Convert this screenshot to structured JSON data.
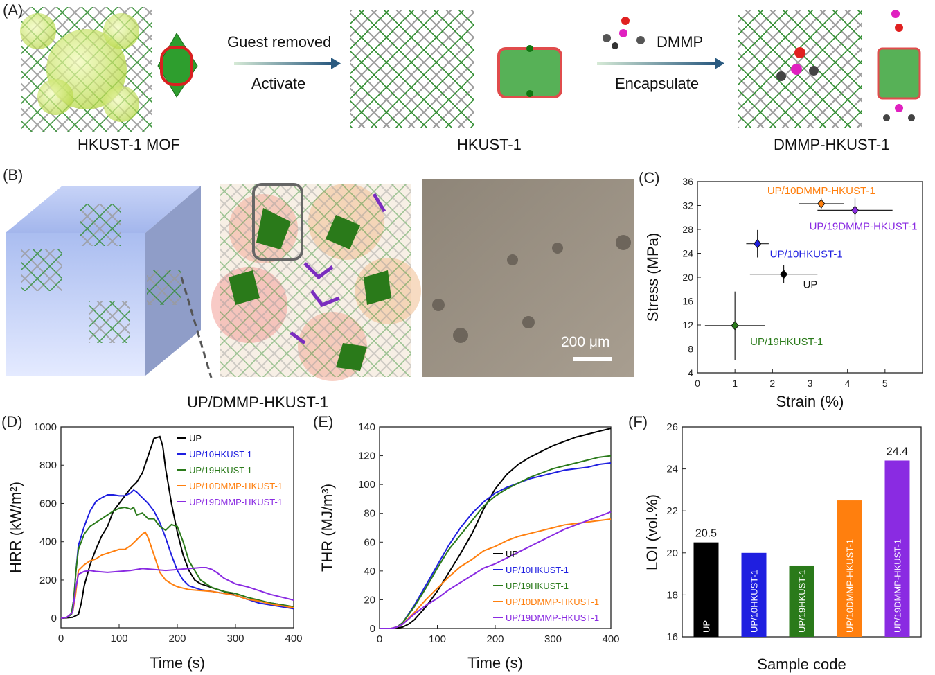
{
  "panelA": {
    "label": "(A)",
    "arrow1_top": "Guest removed",
    "arrow1_bottom": "Activate",
    "arrow2_top": "DMMP",
    "arrow2_bottom": "Encapsulate",
    "captions": [
      "HKUST-1 MOF",
      "HKUST-1",
      "DMMP-HKUST-1"
    ]
  },
  "panelB": {
    "label": "(B)",
    "caption": "UP/DMMP-HKUST-1",
    "scale_bar": "200 μm"
  },
  "colors": {
    "UP": "#000000",
    "UP/10HKUST-1": "#1f1fe0",
    "UP/19HKUST-1": "#2a7a1a",
    "UP/10DMMP-HKUST-1": "#ff7f0e",
    "UP/19DMMP-HKUST-1": "#8a2be2"
  },
  "chart_data": [
    {
      "id": "C",
      "panel_label": "(C)",
      "type": "scatter",
      "xlabel": "Strain (%)",
      "ylabel": "Stress (MPa)",
      "xlim": [
        0,
        6
      ],
      "ylim": [
        4,
        36
      ],
      "xticks": [
        0,
        1,
        2,
        3,
        4,
        5
      ],
      "yticks": [
        4,
        8,
        12,
        16,
        20,
        24,
        28,
        32,
        36
      ],
      "points": [
        {
          "label": "UP",
          "x": 2.3,
          "y": 20.5,
          "xerr": 0.9,
          "yerr": 1.5,
          "color": "#000000"
        },
        {
          "label": "UP/10HKUST-1",
          "x": 1.6,
          "y": 25.6,
          "xerr": 0.3,
          "yerr": 2.3,
          "color": "#1f1fe0"
        },
        {
          "label": "UP/19HKUST-1",
          "x": 1.0,
          "y": 11.9,
          "xerr": 0.8,
          "yerr": 5.7,
          "color": "#2a7a1a"
        },
        {
          "label": "UP/10DMMP-HKUST-1",
          "x": 3.3,
          "y": 32.3,
          "xerr": 0.6,
          "yerr": 0.9,
          "color": "#ff7f0e"
        },
        {
          "label": "UP/19DMMP-HKUST-1",
          "x": 4.2,
          "y": 31.2,
          "xerr": 1.0,
          "yerr": 2.0,
          "color": "#8a2be2"
        }
      ]
    },
    {
      "id": "D",
      "panel_label": "(D)",
      "type": "line",
      "xlabel": "Time (s)",
      "ylabel": "HRR (kW/m²)",
      "xlim": [
        0,
        400
      ],
      "ylim": [
        -50,
        1000
      ],
      "xticks": [
        0,
        100,
        200,
        300,
        400
      ],
      "yticks": [
        0,
        200,
        400,
        600,
        800,
        1000
      ],
      "legend": [
        "UP",
        "UP/10HKUST-1",
        "UP/19HKUST-1",
        "UP/10DMMP-HKUST-1",
        "UP/19DMMP-HKUST-1"
      ],
      "series": [
        {
          "name": "UP",
          "color": "#000000",
          "x": [
            0,
            20,
            30,
            35,
            40,
            50,
            60,
            70,
            80,
            90,
            100,
            110,
            120,
            130,
            140,
            150,
            160,
            170,
            175,
            180,
            190,
            200,
            210,
            220,
            230,
            240,
            250,
            260,
            280,
            300,
            320,
            340,
            360,
            380,
            400
          ],
          "y": [
            0,
            5,
            20,
            80,
            170,
            280,
            360,
            430,
            480,
            560,
            600,
            640,
            680,
            710,
            760,
            850,
            940,
            950,
            900,
            780,
            600,
            450,
            330,
            250,
            200,
            180,
            170,
            160,
            140,
            120,
            100,
            90,
            80,
            70,
            60
          ]
        },
        {
          "name": "UP/10HKUST-1",
          "color": "#1f1fe0",
          "x": [
            0,
            10,
            18,
            22,
            26,
            30,
            40,
            50,
            60,
            70,
            80,
            90,
            100,
            110,
            120,
            125,
            130,
            140,
            150,
            160,
            170,
            180,
            190,
            200,
            210,
            220,
            240,
            260,
            280,
            300,
            320,
            340,
            360,
            380,
            400
          ],
          "y": [
            0,
            5,
            20,
            100,
            250,
            380,
            480,
            560,
            610,
            630,
            645,
            645,
            640,
            640,
            655,
            670,
            660,
            630,
            600,
            560,
            500,
            420,
            330,
            250,
            200,
            170,
            150,
            140,
            130,
            120,
            100,
            80,
            70,
            60,
            50
          ]
        },
        {
          "name": "UP/19HKUST-1",
          "color": "#2a7a1a",
          "x": [
            0,
            10,
            18,
            22,
            26,
            30,
            40,
            50,
            60,
            70,
            80,
            90,
            100,
            110,
            120,
            125,
            130,
            140,
            150,
            160,
            170,
            180,
            190,
            200,
            210,
            220,
            240,
            260,
            280,
            300,
            320,
            340,
            360,
            380,
            400
          ],
          "y": [
            0,
            5,
            20,
            100,
            250,
            360,
            440,
            480,
            500,
            520,
            540,
            560,
            575,
            580,
            570,
            580,
            540,
            550,
            520,
            520,
            480,
            460,
            490,
            480,
            400,
            300,
            200,
            160,
            140,
            130,
            110,
            95,
            80,
            70,
            60
          ]
        },
        {
          "name": "UP/10DMMP-HKUST-1",
          "color": "#ff7f0e",
          "x": [
            0,
            10,
            20,
            25,
            30,
            40,
            50,
            60,
            70,
            80,
            90,
            100,
            110,
            120,
            130,
            140,
            145,
            150,
            160,
            170,
            180,
            190,
            200,
            220,
            240,
            260,
            280,
            300,
            320,
            340,
            360,
            380,
            400
          ],
          "y": [
            0,
            5,
            30,
            120,
            250,
            280,
            300,
            310,
            330,
            340,
            350,
            360,
            360,
            380,
            410,
            440,
            450,
            420,
            330,
            240,
            200,
            180,
            165,
            150,
            145,
            140,
            130,
            120,
            100,
            90,
            75,
            65,
            55
          ]
        },
        {
          "name": "UP/19DMMP-HKUST-1",
          "color": "#8a2be2",
          "x": [
            0,
            10,
            20,
            25,
            30,
            40,
            50,
            60,
            80,
            100,
            120,
            140,
            160,
            180,
            200,
            220,
            240,
            250,
            260,
            270,
            280,
            300,
            320,
            340,
            360,
            380,
            400
          ],
          "y": [
            0,
            5,
            30,
            150,
            230,
            245,
            250,
            245,
            240,
            245,
            250,
            260,
            255,
            250,
            255,
            260,
            265,
            265,
            255,
            235,
            210,
            180,
            165,
            145,
            125,
            110,
            95
          ]
        }
      ]
    },
    {
      "id": "E",
      "panel_label": "(E)",
      "type": "line",
      "xlabel": "Time (s)",
      "ylabel": "THR (MJ/m³)",
      "xlim": [
        0,
        400
      ],
      "ylim": [
        0,
        140
      ],
      "xticks": [
        0,
        100,
        200,
        300,
        400
      ],
      "yticks": [
        0,
        20,
        40,
        60,
        80,
        100,
        120,
        140
      ],
      "legend": [
        "UP",
        "UP/10HKUST-1",
        "UP/19HKUST-1",
        "UP/10DMMP-HKUST-1",
        "UP/19DMMP-HKUST-1"
      ],
      "series": [
        {
          "name": "UP",
          "color": "#000000",
          "x": [
            0,
            25,
            40,
            50,
            60,
            80,
            100,
            120,
            140,
            160,
            180,
            200,
            220,
            240,
            260,
            280,
            300,
            320,
            340,
            360,
            380,
            400
          ],
          "y": [
            0,
            0,
            1,
            3,
            6,
            15,
            26,
            39,
            52,
            66,
            83,
            97,
            107,
            114,
            119,
            123,
            127,
            130,
            133,
            135,
            137,
            139
          ]
        },
        {
          "name": "UP/10HKUST-1",
          "color": "#1f1fe0",
          "x": [
            0,
            20,
            30,
            40,
            60,
            80,
            100,
            120,
            140,
            160,
            180,
            200,
            220,
            240,
            260,
            280,
            300,
            320,
            340,
            360,
            380,
            400
          ],
          "y": [
            0,
            0,
            1,
            4,
            16,
            30,
            44,
            58,
            70,
            80,
            88,
            94,
            98,
            101,
            104,
            106,
            108,
            110,
            111,
            112,
            114,
            115
          ]
        },
        {
          "name": "UP/19HKUST-1",
          "color": "#2a7a1a",
          "x": [
            0,
            20,
            30,
            40,
            60,
            80,
            100,
            120,
            140,
            160,
            180,
            200,
            220,
            240,
            260,
            280,
            300,
            320,
            340,
            360,
            380,
            400
          ],
          "y": [
            0,
            0,
            1,
            4,
            15,
            28,
            42,
            55,
            65,
            75,
            85,
            92,
            97,
            101,
            105,
            108,
            111,
            113,
            115,
            117,
            119,
            120
          ]
        },
        {
          "name": "UP/10DMMP-HKUST-1",
          "color": "#ff7f0e",
          "x": [
            0,
            20,
            30,
            40,
            60,
            80,
            100,
            120,
            140,
            160,
            180,
            200,
            220,
            240,
            260,
            280,
            300,
            320,
            340,
            360,
            380,
            400
          ],
          "y": [
            0,
            0,
            1,
            3,
            11,
            20,
            28,
            36,
            43,
            48,
            54,
            57,
            61,
            64,
            66,
            68,
            70,
            72,
            73,
            74,
            75,
            76
          ]
        },
        {
          "name": "UP/19DMMP-HKUST-1",
          "color": "#8a2be2",
          "x": [
            0,
            20,
            30,
            40,
            60,
            80,
            100,
            120,
            140,
            160,
            180,
            200,
            220,
            240,
            260,
            280,
            300,
            320,
            340,
            360,
            380,
            400
          ],
          "y": [
            0,
            0,
            1,
            3,
            10,
            16,
            21,
            27,
            32,
            37,
            42,
            45,
            49,
            53,
            57,
            61,
            65,
            69,
            72,
            75,
            78,
            81
          ]
        }
      ]
    },
    {
      "id": "F",
      "panel_label": "(F)",
      "type": "bar",
      "xlabel": "Sample code",
      "ylabel": "LOI (vol.%)",
      "ylim": [
        16,
        26
      ],
      "yticks": [
        16,
        18,
        20,
        22,
        24,
        26
      ],
      "categories": [
        "UP",
        "UP/10HKUST-1",
        "UP/19HKUST-1",
        "UP/10DMMP-HKUST-1",
        "UP/19DMMP-HKUST-1"
      ],
      "values": [
        20.5,
        20.0,
        19.4,
        22.5,
        24.4
      ],
      "colors": [
        "#000000",
        "#1f1fe0",
        "#2a7a1a",
        "#ff7f0e",
        "#8a2be2"
      ],
      "value_labels": [
        "20.5",
        "",
        "",
        "",
        "24.4"
      ]
    }
  ]
}
